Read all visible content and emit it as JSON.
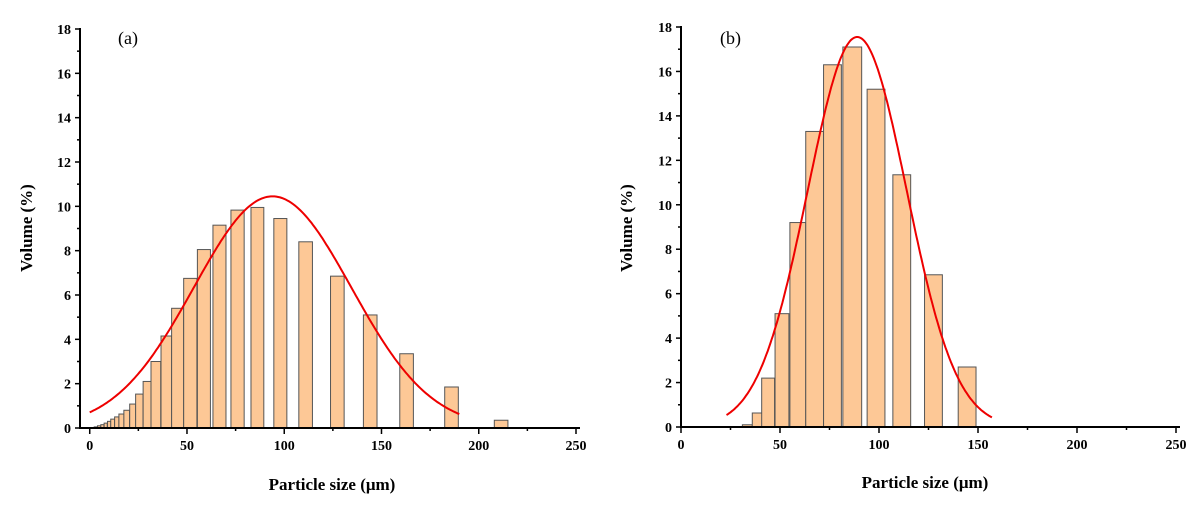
{
  "colors": {
    "bar_fill": "#fdc896",
    "bar_stroke": "#555555",
    "fit": "#ee0000",
    "axis": "#000000"
  },
  "chart_data": [
    {
      "type": "bar",
      "panel_label": "(a)",
      "xlabel": "Particle size (μm)",
      "ylabel": "Volume (%)",
      "xlim": [
        -5,
        250
      ],
      "ylim": [
        0,
        18
      ],
      "xticks": [
        0,
        50,
        100,
        150,
        200,
        250
      ],
      "yticks": [
        0,
        2,
        4,
        6,
        8,
        10,
        12,
        14,
        16,
        18
      ],
      "grid": false,
      "bars": [
        {
          "x": 3.1,
          "w": 1.6,
          "y": 0.05
        },
        {
          "x": 4.8,
          "w": 1.6,
          "y": 0.1
        },
        {
          "x": 6.5,
          "w": 1.6,
          "y": 0.15
        },
        {
          "x": 8.2,
          "w": 1.6,
          "y": 0.22
        },
        {
          "x": 10.0,
          "w": 1.7,
          "y": 0.3
        },
        {
          "x": 11.8,
          "w": 2.0,
          "y": 0.4
        },
        {
          "x": 13.9,
          "w": 2.2,
          "y": 0.5
        },
        {
          "x": 16.3,
          "w": 2.6,
          "y": 0.63
        },
        {
          "x": 19.0,
          "w": 2.9,
          "y": 0.8
        },
        {
          "x": 22.1,
          "w": 3.1,
          "y": 1.08
        },
        {
          "x": 25.5,
          "w": 3.8,
          "y": 1.53
        },
        {
          "x": 29.6,
          "w": 4.3,
          "y": 2.1
        },
        {
          "x": 34.0,
          "w": 5.0,
          "y": 3.0
        },
        {
          "x": 39.4,
          "w": 5.5,
          "y": 4.15
        },
        {
          "x": 45.2,
          "w": 6.2,
          "y": 5.4
        },
        {
          "x": 51.7,
          "w": 6.8,
          "y": 6.75
        },
        {
          "x": 58.7,
          "w": 6.7,
          "y": 8.05
        },
        {
          "x": 66.7,
          "w": 6.7,
          "y": 9.15
        },
        {
          "x": 76.0,
          "w": 6.8,
          "y": 9.83
        },
        {
          "x": 86.2,
          "w": 6.6,
          "y": 9.95
        },
        {
          "x": 98.0,
          "w": 6.7,
          "y": 9.45
        },
        {
          "x": 111.0,
          "w": 7.0,
          "y": 8.4
        },
        {
          "x": 127.3,
          "w": 7.0,
          "y": 6.85
        },
        {
          "x": 144.2,
          "w": 7.0,
          "y": 5.1
        },
        {
          "x": 162.9,
          "w": 7.0,
          "y": 3.35
        },
        {
          "x": 186.0,
          "w": 7.0,
          "y": 1.85
        },
        {
          "x": 211.5,
          "w": 7.0,
          "y": 0.35
        }
      ],
      "fit": {
        "type": "gaussian",
        "mean": 94,
        "sigma": 40.5,
        "amplitude": 10.45,
        "x_range": [
          0,
          190
        ]
      }
    },
    {
      "type": "bar",
      "panel_label": "(b)",
      "xlabel": "Particle size (μm)",
      "ylabel": "Volume (%)",
      "xlim": [
        0,
        250
      ],
      "ylim": [
        0,
        18
      ],
      "xticks": [
        0,
        50,
        100,
        150,
        200,
        250
      ],
      "yticks": [
        0,
        2,
        4,
        6,
        8,
        10,
        12,
        14,
        16,
        18
      ],
      "grid": false,
      "bars": [
        {
          "x": 33.5,
          "w": 5,
          "y": 0.1
        },
        {
          "x": 38.5,
          "w": 5,
          "y": 0.63
        },
        {
          "x": 44,
          "w": 6.5,
          "y": 2.2
        },
        {
          "x": 51,
          "w": 7,
          "y": 5.1
        },
        {
          "x": 59,
          "w": 8,
          "y": 9.2
        },
        {
          "x": 67.5,
          "w": 9,
          "y": 13.3
        },
        {
          "x": 76.5,
          "w": 9,
          "y": 16.3
        },
        {
          "x": 86.5,
          "w": 9.5,
          "y": 17.1
        },
        {
          "x": 98.5,
          "w": 9,
          "y": 15.2
        },
        {
          "x": 111.5,
          "w": 9,
          "y": 11.35
        },
        {
          "x": 127.5,
          "w": 9,
          "y": 6.85
        },
        {
          "x": 144.5,
          "w": 9,
          "y": 2.7
        }
      ],
      "fit": {
        "type": "gaussian",
        "mean": 89,
        "sigma": 25,
        "amplitude": 17.55,
        "x_range": [
          23,
          157
        ]
      }
    }
  ]
}
